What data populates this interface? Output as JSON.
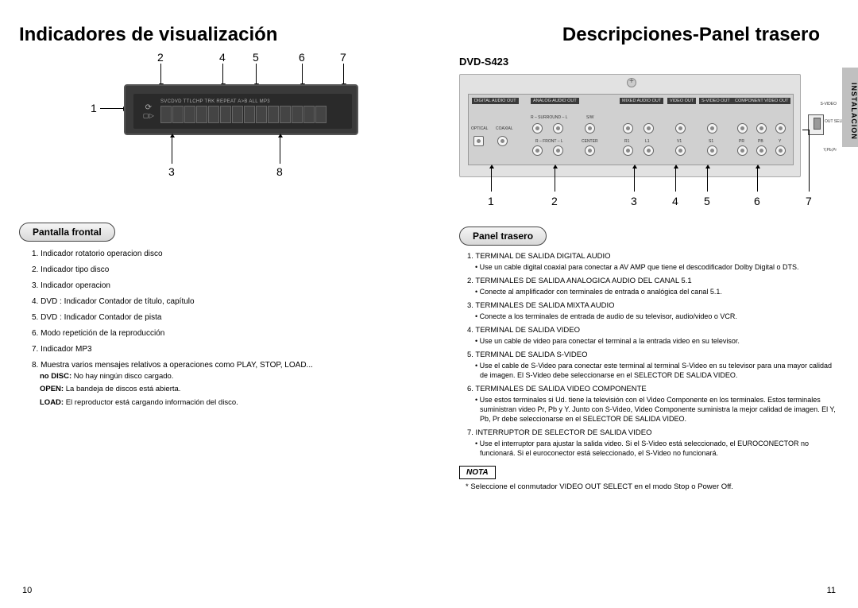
{
  "left": {
    "title": "Indicadores de visualización",
    "display_text": {
      "top_row": "SVCDVD   TTLCHP  TRK   REPEAT A>B  ALL   MP3"
    },
    "callouts_top": [
      "2",
      "4",
      "5",
      "6",
      "7"
    ],
    "callouts_left": [
      "1"
    ],
    "callouts_bottom": [
      "3",
      "8"
    ],
    "pill": "Pantalla frontal",
    "items": [
      "1. Indicador rotatorio operacion disco",
      "2. Indicador tipo disco",
      "3. Indicador operacion",
      "4. DVD : Indicador Contador de título, capítulo",
      "5. DVD : Indicador Contador de pista",
      "6. Modo repetición de la reproducción",
      "7. Indicador MP3",
      "8. Muestra varios mensajes relativos a operaciones como PLAY, STOP, LOAD..."
    ],
    "sub8": [
      {
        "b": "no DISC:",
        "t": " No hay ningún disco cargado."
      },
      {
        "b": "OPEN:",
        "t": " La bandeja de discos está abierta."
      },
      {
        "b": "LOAD:",
        "t": " El reproductor está cargando información del disco."
      }
    ],
    "page_num": "10"
  },
  "right": {
    "title": "Descripciones-Panel trasero",
    "model": "DVD-S423",
    "side_tab": "INSTALACION",
    "block_labels": [
      "DIGITAL AUDIO OUT",
      "ANALOG AUDIO OUT",
      "MIXED AUDIO OUT",
      "VIDEO OUT",
      "S-VIDEO OUT",
      "COMPONENT VIDEO OUT"
    ],
    "sub_labels": {
      "optical": "OPTICAL",
      "coaxial": "COAXIAL",
      "surround": "R – SURROUND – L",
      "front": "R – FRONT – L",
      "sw": "S/W",
      "center": "CENTER",
      "r1": "R1",
      "l1": "L1",
      "v1": "V1",
      "s1": "S1",
      "pr": "PR",
      "pb": "PB",
      "y": "Y",
      "svideo_sw": "S-VIDEO",
      "ypbpr_sw": "Y,Pb,Pr",
      "vout_select": "VIDEO OUT SELECT"
    },
    "callouts": [
      "1",
      "2",
      "3",
      "4",
      "5",
      "6",
      "7"
    ],
    "pill": "Panel trasero",
    "items": [
      {
        "h": "1. TERMINAL DE SALIDA DIGITAL AUDIO",
        "b": [
          "Use un cable digital coaxial para conectar a AV AMP que tiene el descodificador Dolby Digital o DTS."
        ]
      },
      {
        "h": "2. TERMINALES DE SALIDA ANALOGICA AUDIO DEL CANAL 5.1",
        "b": [
          "Conecte al amplificador con terminales de entrada o analógica del canal 5.1."
        ]
      },
      {
        "h": "3. TERMINALES DE SALIDA MIXTA AUDIO",
        "b": [
          "Conecte a los terminales de entrada de audio de su televisor, audio/video o VCR."
        ]
      },
      {
        "h": "4. TERMINAL DE SALIDA VIDEO",
        "b": [
          "Use un cable de video para conectar el terminal a la entrada video en su televisor."
        ]
      },
      {
        "h": "5. TERMINAL DE SALIDA S-VIDEO",
        "b": [
          "Use el cable de S-Video para conectar este terminal al terminal S-Video en su televisor para una mayor calidad de imagen. El S-Video debe seleccionarse en el SELECTOR DE SALIDA VIDEO."
        ]
      },
      {
        "h": "6. TERMINALES DE SALIDA VIDEO COMPONENTE",
        "b": [
          "Use estos terminales si Ud. tiene la televisión con el Video Componente en los terminales. Estos terminales suministran video Pr, Pb y Y. Junto con S-Video, Video Componente suministra la mejor calidad de imagen. El Y, Pb, Pr debe seleccionarse en el SELECTOR DE SALIDA VIDEO."
        ]
      },
      {
        "h": "7. INTERRUPTOR DE SELECTOR DE SALIDA VIDEO",
        "b": [
          "Use el interruptor para ajustar la salida video. Si el S-Video está seleccionado, el EUROCONECTOR no funcionará. Si el euroconector está seleccionado, el S-Video no funcionará."
        ]
      }
    ],
    "nota_label": "NOTA",
    "nota_text": "* Seleccione el conmutador VIDEO OUT SELECT en el modo Stop o Power Off.",
    "page_num": "11"
  }
}
